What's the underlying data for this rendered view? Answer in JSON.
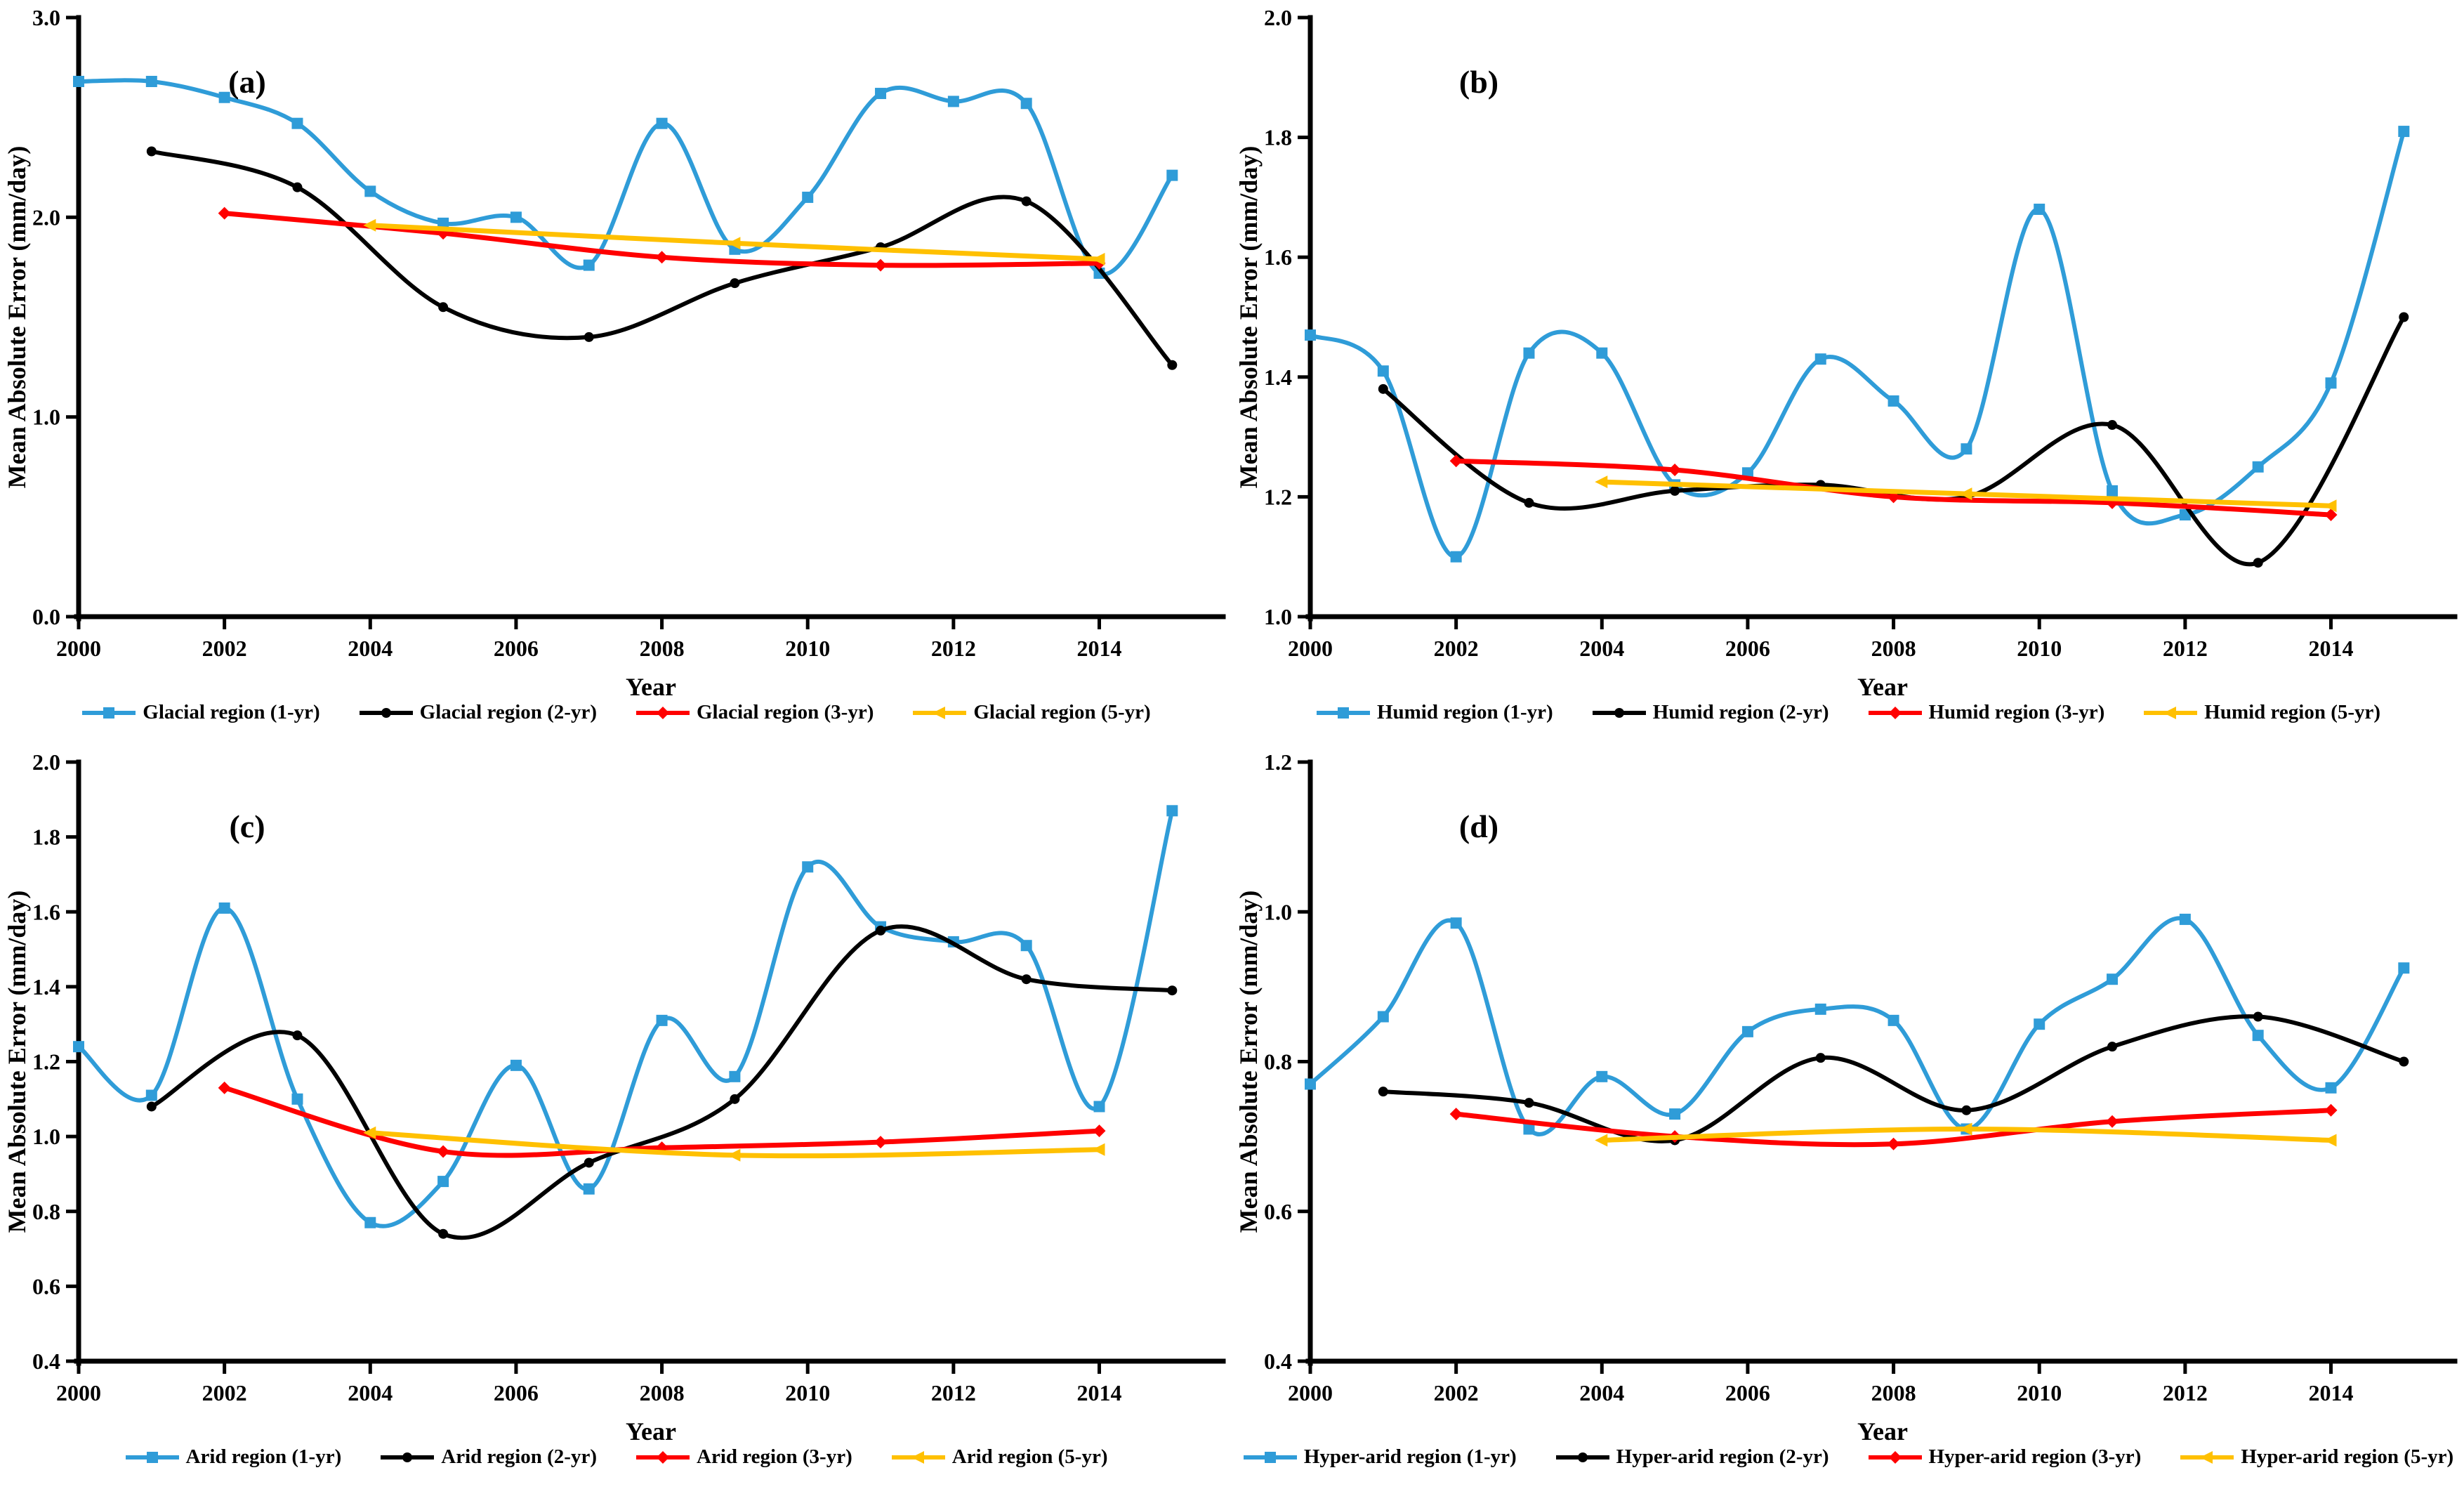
{
  "figure": {
    "description": "Four-panel line chart figure comparing Mean Absolute Error (mm/day) of forecasts over years 2000-2015 for four climate regions and four calibration windows (1-yr, 2-yr, 3-yr, 5-yr).",
    "colors": {
      "series_1yr": "#2F9CD8",
      "series_2yr": "#000000",
      "series_3yr": "#FF0000",
      "series_5yr": "#FFC000",
      "axis": "#000000",
      "background": "#FFFFFF"
    }
  },
  "chart_data": [
    {
      "id": "a",
      "title": "(a)",
      "region": "Glacial",
      "type": "line",
      "grid": false,
      "xlabel": "Year",
      "ylabel": "Mean Absolute Error (mm/day)",
      "xlim": [
        2000,
        2015.7
      ],
      "ylim": [
        0.0,
        3.0
      ],
      "xticks": [
        2000,
        2002,
        2004,
        2006,
        2008,
        2010,
        2012,
        2014
      ],
      "xtick_labels": [
        "2000",
        "2002",
        "2004",
        "2006",
        "2008",
        "2010",
        "2012",
        "2014"
      ],
      "yticks": [
        0.0,
        1.0,
        2.0,
        3.0
      ],
      "ytick_labels": [
        "0.0",
        "1.0",
        "2.0",
        "3.0"
      ],
      "legend_position": "bottom",
      "series": [
        {
          "name": "Glacial region (1-yr)",
          "color": "#2F9CD8",
          "marker": "square",
          "line_width": 6,
          "x": [
            2000,
            2001,
            2002,
            2003,
            2004,
            2005,
            2006,
            2007,
            2008,
            2009,
            2010,
            2011,
            2012,
            2013,
            2014,
            2015
          ],
          "y": [
            2.68,
            2.68,
            2.6,
            2.47,
            2.13,
            1.97,
            2.0,
            1.76,
            2.47,
            1.84,
            2.1,
            2.62,
            2.58,
            2.57,
            1.72,
            2.21
          ]
        },
        {
          "name": "Glacial region (2-yr)",
          "color": "#000000",
          "marker": "circle",
          "line_width": 6,
          "x": [
            2001,
            2003,
            2005,
            2007,
            2009,
            2011,
            2013,
            2015
          ],
          "y": [
            2.33,
            2.15,
            1.55,
            1.4,
            1.67,
            1.85,
            2.08,
            1.26
          ]
        },
        {
          "name": "Glacial region (3-yr)",
          "color": "#FF0000",
          "marker": "diamond",
          "line_width": 7,
          "x": [
            2002,
            2005,
            2008,
            2011,
            2014
          ],
          "y": [
            2.02,
            1.92,
            1.8,
            1.76,
            1.77
          ]
        },
        {
          "name": "Glacial region (5-yr)",
          "color": "#FFC000",
          "marker": "triangle-left",
          "line_width": 7,
          "x": [
            2004,
            2009,
            2014
          ],
          "y": [
            1.96,
            1.87,
            1.79
          ]
        }
      ]
    },
    {
      "id": "b",
      "title": "(b)",
      "region": "Humid",
      "type": "line",
      "grid": false,
      "xlabel": "Year",
      "ylabel": "Mean Absolute Error (mm/day)",
      "xlim": [
        2000,
        2015.7
      ],
      "ylim": [
        1.0,
        2.0
      ],
      "xticks": [
        2000,
        2002,
        2004,
        2006,
        2008,
        2010,
        2012,
        2014
      ],
      "xtick_labels": [
        "2000",
        "2002",
        "2004",
        "2006",
        "2008",
        "2010",
        "2012",
        "2014"
      ],
      "yticks": [
        1.0,
        1.2,
        1.4,
        1.6,
        1.8,
        2.0
      ],
      "ytick_labels": [
        "1.0",
        "1.2",
        "1.4",
        "1.6",
        "1.8",
        "2.0"
      ],
      "legend_position": "bottom",
      "series": [
        {
          "name": "Humid region (1-yr)",
          "color": "#2F9CD8",
          "marker": "square",
          "line_width": 6,
          "x": [
            2000,
            2001,
            2002,
            2003,
            2004,
            2005,
            2006,
            2007,
            2008,
            2009,
            2010,
            2011,
            2012,
            2013,
            2014,
            2015
          ],
          "y": [
            1.47,
            1.41,
            1.1,
            1.44,
            1.44,
            1.22,
            1.24,
            1.43,
            1.36,
            1.28,
            1.68,
            1.21,
            1.17,
            1.25,
            1.39,
            1.81
          ]
        },
        {
          "name": "Humid region (2-yr)",
          "color": "#000000",
          "marker": "circle",
          "line_width": 6,
          "x": [
            2001,
            2003,
            2005,
            2007,
            2009,
            2011,
            2013,
            2015
          ],
          "y": [
            1.38,
            1.19,
            1.21,
            1.22,
            1.2,
            1.32,
            1.09,
            1.5
          ]
        },
        {
          "name": "Humid region (3-yr)",
          "color": "#FF0000",
          "marker": "diamond",
          "line_width": 7,
          "x": [
            2002,
            2005,
            2008,
            2011,
            2014
          ],
          "y": [
            1.26,
            1.245,
            1.2,
            1.19,
            1.17
          ]
        },
        {
          "name": "Humid region (5-yr)",
          "color": "#FFC000",
          "marker": "triangle-left",
          "line_width": 7,
          "x": [
            2004,
            2009,
            2014
          ],
          "y": [
            1.225,
            1.205,
            1.185
          ]
        }
      ]
    },
    {
      "id": "c",
      "title": "(c)",
      "region": "Arid",
      "type": "line",
      "grid": false,
      "xlabel": "Year",
      "ylabel": "Mean Absolute Error (mm/day)",
      "xlim": [
        2000,
        2015.7
      ],
      "ylim": [
        0.4,
        2.0
      ],
      "xticks": [
        2000,
        2002,
        2004,
        2006,
        2008,
        2010,
        2012,
        2014
      ],
      "xtick_labels": [
        "2000",
        "2002",
        "2004",
        "2006",
        "2008",
        "2010",
        "2012",
        "2014"
      ],
      "yticks": [
        0.4,
        0.6,
        0.8,
        1.0,
        1.2,
        1.4,
        1.6,
        1.8,
        2.0
      ],
      "ytick_labels": [
        "0.4",
        "0.6",
        "0.8",
        "1.0",
        "1.2",
        "1.4",
        "1.6",
        "1.8",
        "2.0"
      ],
      "legend_position": "bottom",
      "series": [
        {
          "name": "Arid region (1-yr)",
          "color": "#2F9CD8",
          "marker": "square",
          "line_width": 6,
          "x": [
            2000,
            2001,
            2002,
            2003,
            2004,
            2005,
            2006,
            2007,
            2008,
            2009,
            2010,
            2011,
            2012,
            2013,
            2014,
            2015
          ],
          "y": [
            1.24,
            1.11,
            1.61,
            1.1,
            0.77,
            0.88,
            1.19,
            0.86,
            1.31,
            1.16,
            1.72,
            1.56,
            1.52,
            1.51,
            1.08,
            1.87
          ]
        },
        {
          "name": "Arid region (2-yr)",
          "color": "#000000",
          "marker": "circle",
          "line_width": 6,
          "x": [
            2001,
            2003,
            2005,
            2007,
            2009,
            2011,
            2013,
            2015
          ],
          "y": [
            1.08,
            1.27,
            0.74,
            0.93,
            1.1,
            1.55,
            1.42,
            1.39
          ]
        },
        {
          "name": "Arid region (3-yr)",
          "color": "#FF0000",
          "marker": "diamond",
          "line_width": 7,
          "x": [
            2002,
            2005,
            2008,
            2011,
            2014
          ],
          "y": [
            1.13,
            0.96,
            0.97,
            0.985,
            1.015
          ]
        },
        {
          "name": "Arid region (5-yr)",
          "color": "#FFC000",
          "marker": "triangle-left",
          "line_width": 7,
          "x": [
            2004,
            2009,
            2014
          ],
          "y": [
            1.01,
            0.95,
            0.965
          ]
        }
      ]
    },
    {
      "id": "d",
      "title": "(d)",
      "region": "Hyper-arid",
      "type": "line",
      "grid": false,
      "xlabel": "Year",
      "ylabel": "Mean Absolute Error (mm/day)",
      "xlim": [
        2000,
        2015.7
      ],
      "ylim": [
        0.4,
        1.2
      ],
      "xticks": [
        2000,
        2002,
        2004,
        2006,
        2008,
        2010,
        2012,
        2014
      ],
      "xtick_labels": [
        "2000",
        "2002",
        "2004",
        "2006",
        "2008",
        "2010",
        "2012",
        "2014"
      ],
      "yticks": [
        0.4,
        0.6,
        0.8,
        1.0,
        1.2
      ],
      "ytick_labels": [
        "0.4",
        "0.6",
        "0.8",
        "1.0",
        "1.2"
      ],
      "legend_position": "bottom",
      "series": [
        {
          "name": "Hyper-arid region (1-yr)",
          "color": "#2F9CD8",
          "marker": "square",
          "line_width": 6,
          "x": [
            2000,
            2001,
            2002,
            2003,
            2004,
            2005,
            2006,
            2007,
            2008,
            2009,
            2010,
            2011,
            2012,
            2013,
            2014,
            2015
          ],
          "y": [
            0.77,
            0.86,
            0.985,
            0.71,
            0.78,
            0.73,
            0.84,
            0.87,
            0.855,
            0.71,
            0.85,
            0.91,
            0.99,
            0.835,
            0.765,
            0.925
          ]
        },
        {
          "name": "Hyper-arid region (2-yr)",
          "color": "#000000",
          "marker": "circle",
          "line_width": 6,
          "x": [
            2001,
            2003,
            2005,
            2007,
            2009,
            2011,
            2013,
            2015
          ],
          "y": [
            0.76,
            0.745,
            0.695,
            0.805,
            0.735,
            0.82,
            0.86,
            0.8
          ]
        },
        {
          "name": "Hyper-arid region (3-yr)",
          "color": "#FF0000",
          "marker": "diamond",
          "line_width": 7,
          "x": [
            2002,
            2005,
            2008,
            2011,
            2014
          ],
          "y": [
            0.73,
            0.7,
            0.69,
            0.72,
            0.735
          ]
        },
        {
          "name": "Hyper-arid region (5-yr)",
          "color": "#FFC000",
          "marker": "triangle-left",
          "line_width": 7,
          "x": [
            2004,
            2009,
            2014
          ],
          "y": [
            0.695,
            0.71,
            0.695
          ]
        }
      ]
    }
  ]
}
